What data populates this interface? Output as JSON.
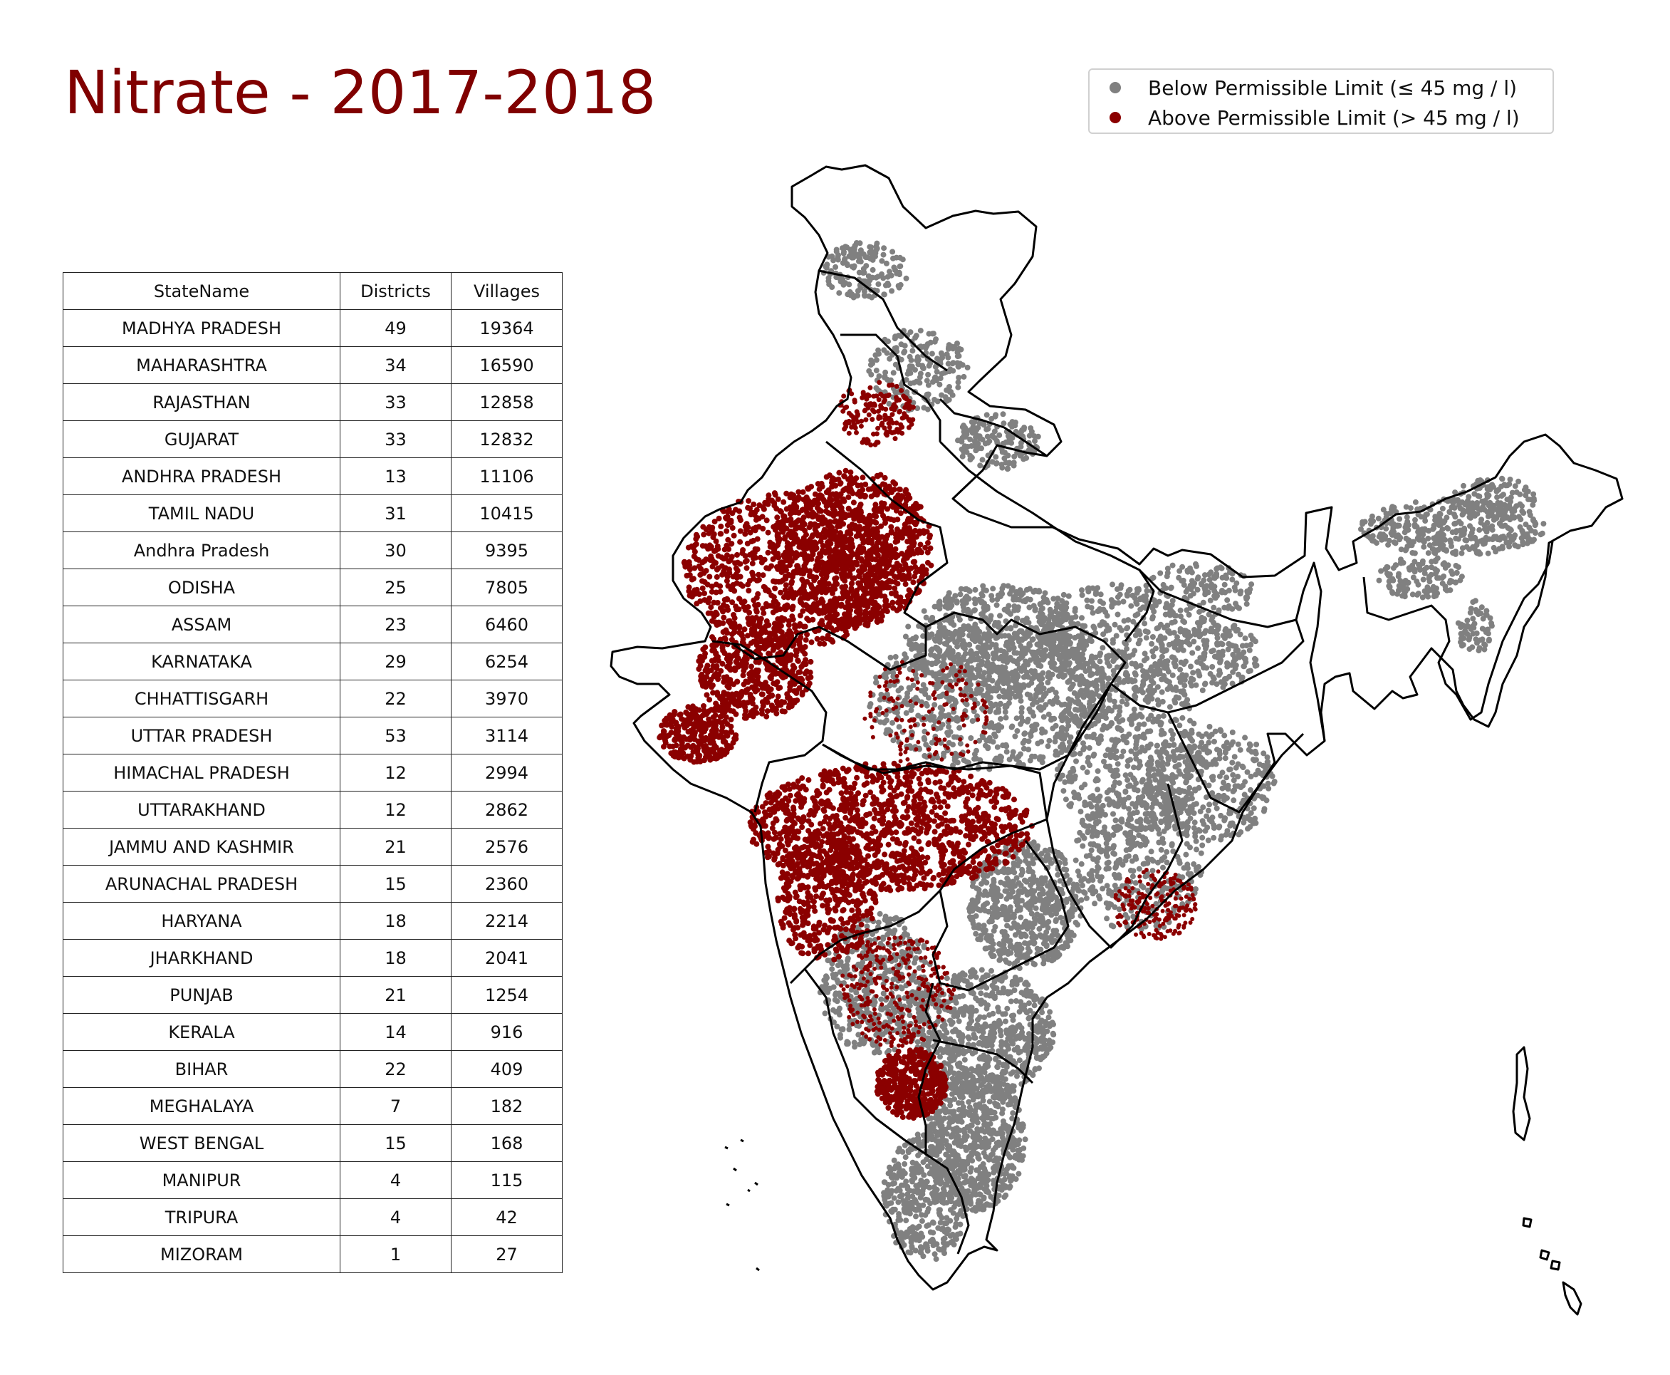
{
  "title": "Nitrate - 2017-2018",
  "legend": {
    "items": [
      {
        "label": "Below Permissible Limit (≤ 45 mg / l)",
        "color": "#808080"
      },
      {
        "label": "Above Permissible Limit (> 45 mg / l)",
        "color": "#8b0000"
      }
    ]
  },
  "table": {
    "headers": [
      "StateName",
      "Districts",
      "Villages"
    ],
    "rows": [
      [
        "MADHYA PRADESH",
        "49",
        "19364"
      ],
      [
        "MAHARASHTRA",
        "34",
        "16590"
      ],
      [
        "RAJASTHAN",
        "33",
        "12858"
      ],
      [
        "GUJARAT",
        "33",
        "12832"
      ],
      [
        "ANDHRA PRADESH",
        "13",
        "11106"
      ],
      [
        "TAMIL NADU",
        "31",
        "10415"
      ],
      [
        "Andhra Pradesh",
        "30",
        "9395"
      ],
      [
        "ODISHA",
        "25",
        "7805"
      ],
      [
        "ASSAM",
        "23",
        "6460"
      ],
      [
        "KARNATAKA",
        "29",
        "6254"
      ],
      [
        "CHHATTISGARH",
        "22",
        "3970"
      ],
      [
        "UTTAR PRADESH",
        "53",
        "3114"
      ],
      [
        "HIMACHAL PRADESH",
        "12",
        "2994"
      ],
      [
        "UTTARAKHAND",
        "12",
        "2862"
      ],
      [
        "JAMMU AND KASHMIR",
        "21",
        "2576"
      ],
      [
        "ARUNACHAL PRADESH",
        "15",
        "2360"
      ],
      [
        "HARYANA",
        "18",
        "2214"
      ],
      [
        "JHARKHAND",
        "18",
        "2041"
      ],
      [
        "PUNJAB",
        "21",
        "1254"
      ],
      [
        "KERALA",
        "14",
        "916"
      ],
      [
        "BIHAR",
        "22",
        "409"
      ],
      [
        "MEGHALAYA",
        "7",
        "182"
      ],
      [
        "WEST BENGAL",
        "15",
        "168"
      ],
      [
        "MANIPUR",
        "4",
        "115"
      ],
      [
        "TRIPURA",
        "4",
        "42"
      ],
      [
        "MIZORAM",
        "1",
        "27"
      ]
    ]
  },
  "map": {
    "outline_color": "#000000",
    "below_color": "#808080",
    "above_color": "#8b0000"
  }
}
